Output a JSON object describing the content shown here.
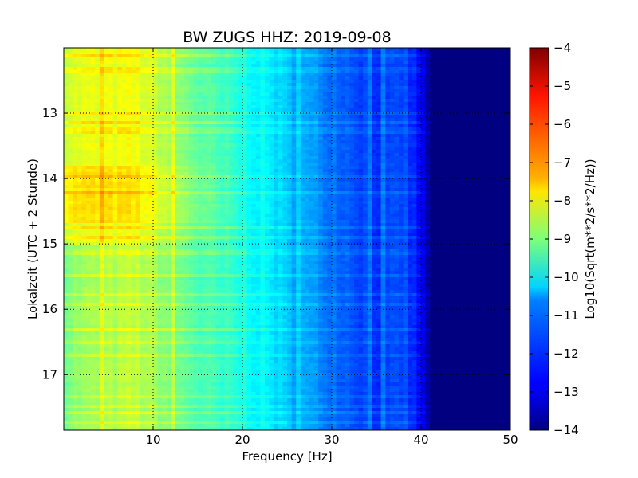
{
  "chart_data": {
    "type": "heatmap",
    "title": "BW ZUGS HHZ: 2019-09-08",
    "xlabel": "Frequency [Hz]",
    "ylabel": "Lokalzeit (UTC + 2 Stunde)",
    "xlim": [
      0,
      50
    ],
    "ylim": [
      12.0,
      17.85
    ],
    "y_inverted": true,
    "x_ticks": [
      10,
      20,
      30,
      40,
      50
    ],
    "y_ticks": [
      13,
      14,
      15,
      16,
      17
    ],
    "grid": true,
    "colorbar": {
      "label": "Log10(Sqrt(m**2/s**2/Hz))",
      "range": [
        -14,
        -4
      ],
      "ticks": [
        -4,
        -5,
        -6,
        -7,
        -8,
        -9,
        -10,
        -11,
        -12,
        -13,
        -14
      ],
      "colormap": "jet"
    },
    "frequency_profile": {
      "frequency_hz": [
        0,
        2,
        5,
        8,
        10,
        12,
        15,
        18,
        20,
        22,
        24,
        25,
        28,
        30,
        33,
        36,
        38,
        40,
        41,
        50
      ],
      "log10_amplitude": [
        -9.0,
        -8.8,
        -8.6,
        -8.4,
        -8.7,
        -9.0,
        -9.5,
        -9.8,
        -10.0,
        -10.3,
        -10.6,
        -10.9,
        -11.3,
        -11.6,
        -12.0,
        -12.3,
        -12.0,
        -12.8,
        -14.0,
        -14.0
      ]
    },
    "time_features": [
      {
        "from": 12.0,
        "to": 15.0,
        "offset": 0.6
      },
      {
        "from": 13.8,
        "to": 14.7,
        "offset": 0.4
      }
    ]
  }
}
